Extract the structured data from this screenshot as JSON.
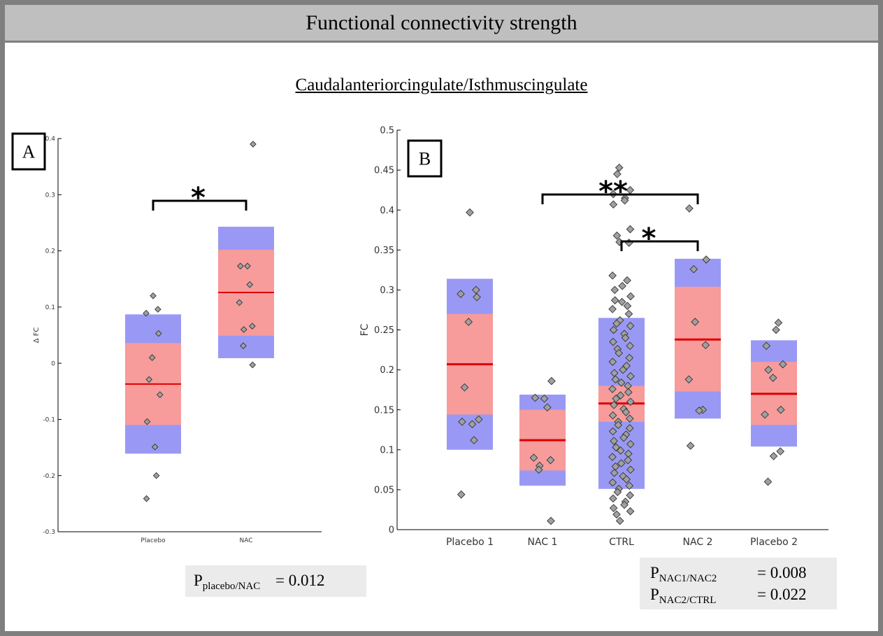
{
  "header": {
    "title": "Functional connectivity strength"
  },
  "subtitle": "Caudalanteriorcingulate/Isthmuscingulate",
  "colors": {
    "outer_band": "#9999f5",
    "inner_band": "#f79b9b",
    "mean_line": "#dd0000",
    "point_fill": "#a0a0a0",
    "header_bg": "#bfbfbf",
    "stats_bg": "#ebebeb"
  },
  "chart_data": [
    {
      "id": "A",
      "panel_label": "A",
      "type": "scatter",
      "ylabel": "Δ FC",
      "ylim": [
        -0.3,
        0.4
      ],
      "yticks": [
        -0.3,
        -0.2,
        -0.1,
        0,
        0.1,
        0.2,
        0.3,
        0.4
      ],
      "ytick_labels": [
        "-0.3",
        "-0.2",
        "-0.1",
        "0",
        "0.1",
        "0.2",
        "0.3",
        "0.4"
      ],
      "categories": [
        "Placebo",
        "NAC"
      ],
      "groups": [
        {
          "name": "Placebo",
          "mean": -0.037,
          "inner": [
            -0.11,
            0.036
          ],
          "outer": [
            -0.161,
            0.087
          ],
          "points": [
            0.12,
            0.096,
            0.089,
            0.053,
            0.01,
            -0.029,
            -0.056,
            -0.104,
            -0.149,
            -0.2,
            -0.241
          ]
        },
        {
          "name": "NAC",
          "mean": 0.126,
          "inner": [
            0.049,
            0.202
          ],
          "outer": [
            0.009,
            0.243
          ],
          "points": [
            0.39,
            0.173,
            0.173,
            0.14,
            0.108,
            0.066,
            0.06,
            0.031,
            -0.003
          ]
        }
      ],
      "brackets": [
        {
          "from": "Placebo",
          "to": "NAC",
          "label": "*"
        }
      ],
      "stats": [
        {
          "p": "P",
          "sub": "placebo/NAC",
          "value": "= 0.012"
        }
      ]
    },
    {
      "id": "B",
      "panel_label": "B",
      "type": "scatter",
      "ylabel": "FC",
      "ylim": [
        0,
        0.5
      ],
      "yticks": [
        0,
        0.05,
        0.1,
        0.15,
        0.2,
        0.25,
        0.3,
        0.35,
        0.4,
        0.45,
        0.5
      ],
      "ytick_labels": [
        "0",
        "0.05",
        "0.1",
        "0.15",
        "0.2",
        "0.25",
        "0.3",
        "0.35",
        "0.4",
        "0.45",
        "0.5"
      ],
      "categories": [
        "Placebo 1",
        "NAC 1",
        "CTRL",
        "NAC 2",
        "Placebo 2"
      ],
      "groups": [
        {
          "name": "Placebo 1",
          "mean": 0.207,
          "inner": [
            0.144,
            0.27
          ],
          "outer": [
            0.1,
            0.314
          ],
          "points": [
            0.397,
            0.3,
            0.295,
            0.291,
            0.26,
            0.178,
            0.138,
            0.135,
            0.132,
            0.112,
            0.044
          ]
        },
        {
          "name": "NAC 1",
          "mean": 0.112,
          "inner": [
            0.074,
            0.15
          ],
          "outer": [
            0.055,
            0.169
          ],
          "points": [
            0.186,
            0.165,
            0.164,
            0.153,
            0.09,
            0.087,
            0.08,
            0.075,
            0.011
          ]
        },
        {
          "name": "CTRL",
          "mean": 0.158,
          "inner": [
            0.135,
            0.18
          ],
          "outer": [
            0.051,
            0.265
          ],
          "points": [
            0.453,
            0.445,
            0.425,
            0.42,
            0.415,
            0.412,
            0.407,
            0.376,
            0.368,
            0.36,
            0.359,
            0.318,
            0.312,
            0.305,
            0.3,
            0.292,
            0.287,
            0.285,
            0.28,
            0.276,
            0.27,
            0.262,
            0.258,
            0.255,
            0.25,
            0.245,
            0.24,
            0.235,
            0.23,
            0.226,
            0.221,
            0.215,
            0.21,
            0.205,
            0.2,
            0.196,
            0.192,
            0.188,
            0.184,
            0.18,
            0.176,
            0.172,
            0.168,
            0.164,
            0.16,
            0.156,
            0.151,
            0.147,
            0.143,
            0.139,
            0.135,
            0.131,
            0.127,
            0.123,
            0.119,
            0.115,
            0.111,
            0.107,
            0.103,
            0.099,
            0.095,
            0.091,
            0.087,
            0.083,
            0.079,
            0.075,
            0.071,
            0.067,
            0.063,
            0.059,
            0.055,
            0.051,
            0.047,
            0.043,
            0.039,
            0.035,
            0.031,
            0.027,
            0.023,
            0.019,
            0.011
          ]
        },
        {
          "name": "NAC 2",
          "mean": 0.238,
          "inner": [
            0.173,
            0.304
          ],
          "outer": [
            0.139,
            0.339
          ],
          "points": [
            0.402,
            0.338,
            0.326,
            0.26,
            0.231,
            0.188,
            0.15,
            0.149,
            0.105
          ]
        },
        {
          "name": "Placebo 2",
          "mean": 0.17,
          "inner": [
            0.131,
            0.21
          ],
          "outer": [
            0.104,
            0.237
          ],
          "points": [
            0.259,
            0.25,
            0.23,
            0.207,
            0.2,
            0.19,
            0.15,
            0.144,
            0.098,
            0.092,
            0.06
          ]
        }
      ],
      "brackets": [
        {
          "from": "NAC 1",
          "to": "NAC 2",
          "label": "**"
        },
        {
          "from": "CTRL",
          "to": "NAC 2",
          "label": "*"
        }
      ],
      "stats": [
        {
          "p": "P",
          "sub": "NAC1/NAC2",
          "value": "= 0.008"
        },
        {
          "p": "P",
          "sub": "NAC2/CTRL",
          "value": "= 0.022"
        }
      ]
    }
  ]
}
